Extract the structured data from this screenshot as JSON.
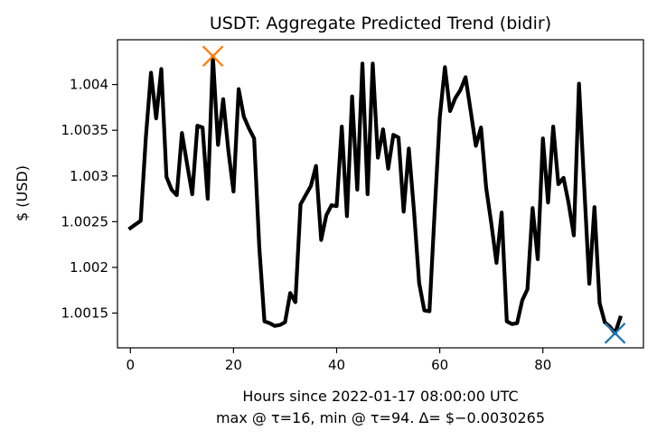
{
  "chart_data": {
    "type": "line",
    "title": "USDT: Aggregate Predicted Trend (bidir)",
    "xlabel": "Hours since 2022-01-17 08:00:00 UTC",
    "xlabel_line2": "max @ τ=16, min @ τ=94. Δ= $−0.0030265",
    "ylabel": "$ (USD)",
    "xlim": [
      -2.5,
      99.5
    ],
    "ylim": [
      1.00112,
      1.00449
    ],
    "x_ticks": [
      0,
      20,
      40,
      60,
      80
    ],
    "x_tick_labels": [
      "0",
      "20",
      "40",
      "60",
      "80"
    ],
    "y_ticks": [
      1.0015,
      1.002,
      1.0025,
      1.003,
      1.0035,
      1.004
    ],
    "y_tick_labels": [
      "1.0015",
      "1.002",
      "1.0025",
      "1.003",
      "1.0035",
      "1.004"
    ],
    "grid": false,
    "series": [
      {
        "color": "#000000",
        "x": [
          0,
          1,
          2,
          3,
          4,
          5,
          6,
          7,
          8,
          9,
          10,
          11,
          12,
          13,
          14,
          15,
          16,
          17,
          18,
          19,
          20,
          21,
          22,
          23,
          24,
          25,
          26,
          27,
          28,
          29,
          30,
          31,
          32,
          33,
          34,
          35,
          36,
          37,
          38,
          39,
          40,
          41,
          42,
          43,
          44,
          45,
          46,
          47,
          48,
          49,
          50,
          51,
          52,
          53,
          54,
          55,
          56,
          57,
          58,
          59,
          60,
          61,
          62,
          63,
          64,
          65,
          66,
          67,
          68,
          69,
          70,
          71,
          72,
          73,
          74,
          75,
          76,
          77,
          78,
          79,
          80,
          81,
          82,
          83,
          84,
          85,
          86,
          87,
          88,
          89,
          90,
          91,
          92,
          93,
          94,
          95
        ],
        "values": [
          1.00243,
          1.00247,
          1.00251,
          1.00342,
          1.00413,
          1.00363,
          1.00417,
          1.00299,
          1.00285,
          1.00279,
          1.00347,
          1.00313,
          1.0028,
          1.00355,
          1.00353,
          1.00275,
          1.00431,
          1.00334,
          1.00384,
          1.00328,
          1.00283,
          1.00395,
          1.00365,
          1.00352,
          1.00341,
          1.00222,
          1.00141,
          1.00139,
          1.00136,
          1.00137,
          1.0014,
          1.00172,
          1.00162,
          1.00269,
          1.00279,
          1.00289,
          1.00311,
          1.0023,
          1.00257,
          1.00268,
          1.00267,
          1.00354,
          1.00256,
          1.00387,
          1.00285,
          1.00423,
          1.0028,
          1.00423,
          1.0032,
          1.00351,
          1.00308,
          1.00345,
          1.00342,
          1.00261,
          1.0033,
          1.00262,
          1.00183,
          1.00153,
          1.00152,
          1.0026,
          1.00364,
          1.00419,
          1.00371,
          1.00385,
          1.00394,
          1.00408,
          1.00371,
          1.00333,
          1.00353,
          1.00287,
          1.00248,
          1.00205,
          1.0026,
          1.00141,
          1.00138,
          1.00139,
          1.00164,
          1.00176,
          1.00265,
          1.00209,
          1.00341,
          1.00271,
          1.00354,
          1.00291,
          1.00298,
          1.0027,
          1.00235,
          1.00401,
          1.0029,
          1.00182,
          1.00266,
          1.00161,
          1.0014,
          1.00135,
          1.00128,
          1.00145
        ]
      }
    ],
    "markers": [
      {
        "label": "max",
        "x": 16,
        "y": 1.00431,
        "color": "#ff7f0e",
        "symbol": "x"
      },
      {
        "label": "min",
        "x": 94,
        "y": 1.00128,
        "color": "#1f77b4",
        "symbol": "x"
      }
    ]
  }
}
